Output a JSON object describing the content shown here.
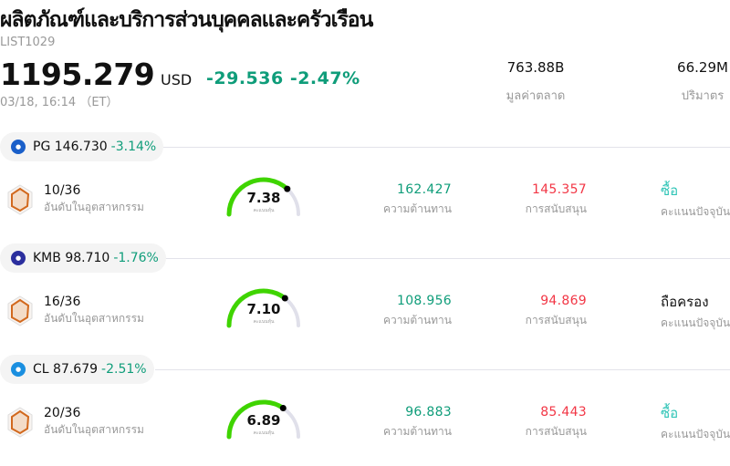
{
  "header": {
    "title": "ผลิตภัณฑ์และบริการส่วนบุคคลและครัวเรือน",
    "code": "LIST1029",
    "price": "1195.279",
    "currency": "USD",
    "change": "-29.536 -2.47%",
    "time": "03/18, 16:14 （ET）"
  },
  "stats": [
    {
      "value": "763.88B",
      "label": "มูลค่าตลาด"
    },
    {
      "value": "66.29M",
      "label": "ปริมาตร"
    }
  ],
  "colors": {
    "up": "#0f9d7a",
    "down": "#f23645",
    "buy": "#2ec4b6",
    "gauge": "#3fd400"
  },
  "stocks": [
    {
      "symbol": "PG",
      "price": "146.730",
      "pct": "-3.14%",
      "logo_color": "#1a5fc9",
      "logo": "pg-logo",
      "rank": "10/36",
      "rank_label": "อันดับในอุตสาหกรรม",
      "score": "7.38",
      "score_value": 7.38,
      "score_label": "คะแนนหุ้น",
      "resistance": "162.427",
      "resistance_label": "ความต้านทาน",
      "support": "145.357",
      "support_label": "การสนับสนุน",
      "rating": "ซื้อ",
      "rating_type": "buy",
      "rating_label": "คะแนนปัจจุบัน"
    },
    {
      "symbol": "KMB",
      "price": "98.710",
      "pct": "-1.76%",
      "logo_color": "#2b2f9e",
      "logo": "kmb-logo",
      "rank": "16/36",
      "rank_label": "อันดับในอุตสาหกรรม",
      "score": "7.10",
      "score_value": 7.1,
      "score_label": "คะแนนหุ้น",
      "resistance": "108.956",
      "resistance_label": "ความต้านทาน",
      "support": "94.869",
      "support_label": "การสนับสนุน",
      "rating": "ถือครอง",
      "rating_type": "hold",
      "rating_label": "คะแนนปัจจุบัน"
    },
    {
      "symbol": "CL",
      "price": "87.679",
      "pct": "-2.51%",
      "logo_color": "#1a8fe0",
      "logo": "cl-logo",
      "rank": "20/36",
      "rank_label": "อันดับในอุตสาหกรรม",
      "score": "6.89",
      "score_value": 6.89,
      "score_label": "คะแนนหุ้น",
      "resistance": "96.883",
      "resistance_label": "ความต้านทาน",
      "support": "85.443",
      "support_label": "การสนับสนุน",
      "rating": "ซื้อ",
      "rating_type": "buy",
      "rating_label": "คะแนนปัจจุบัน"
    }
  ]
}
